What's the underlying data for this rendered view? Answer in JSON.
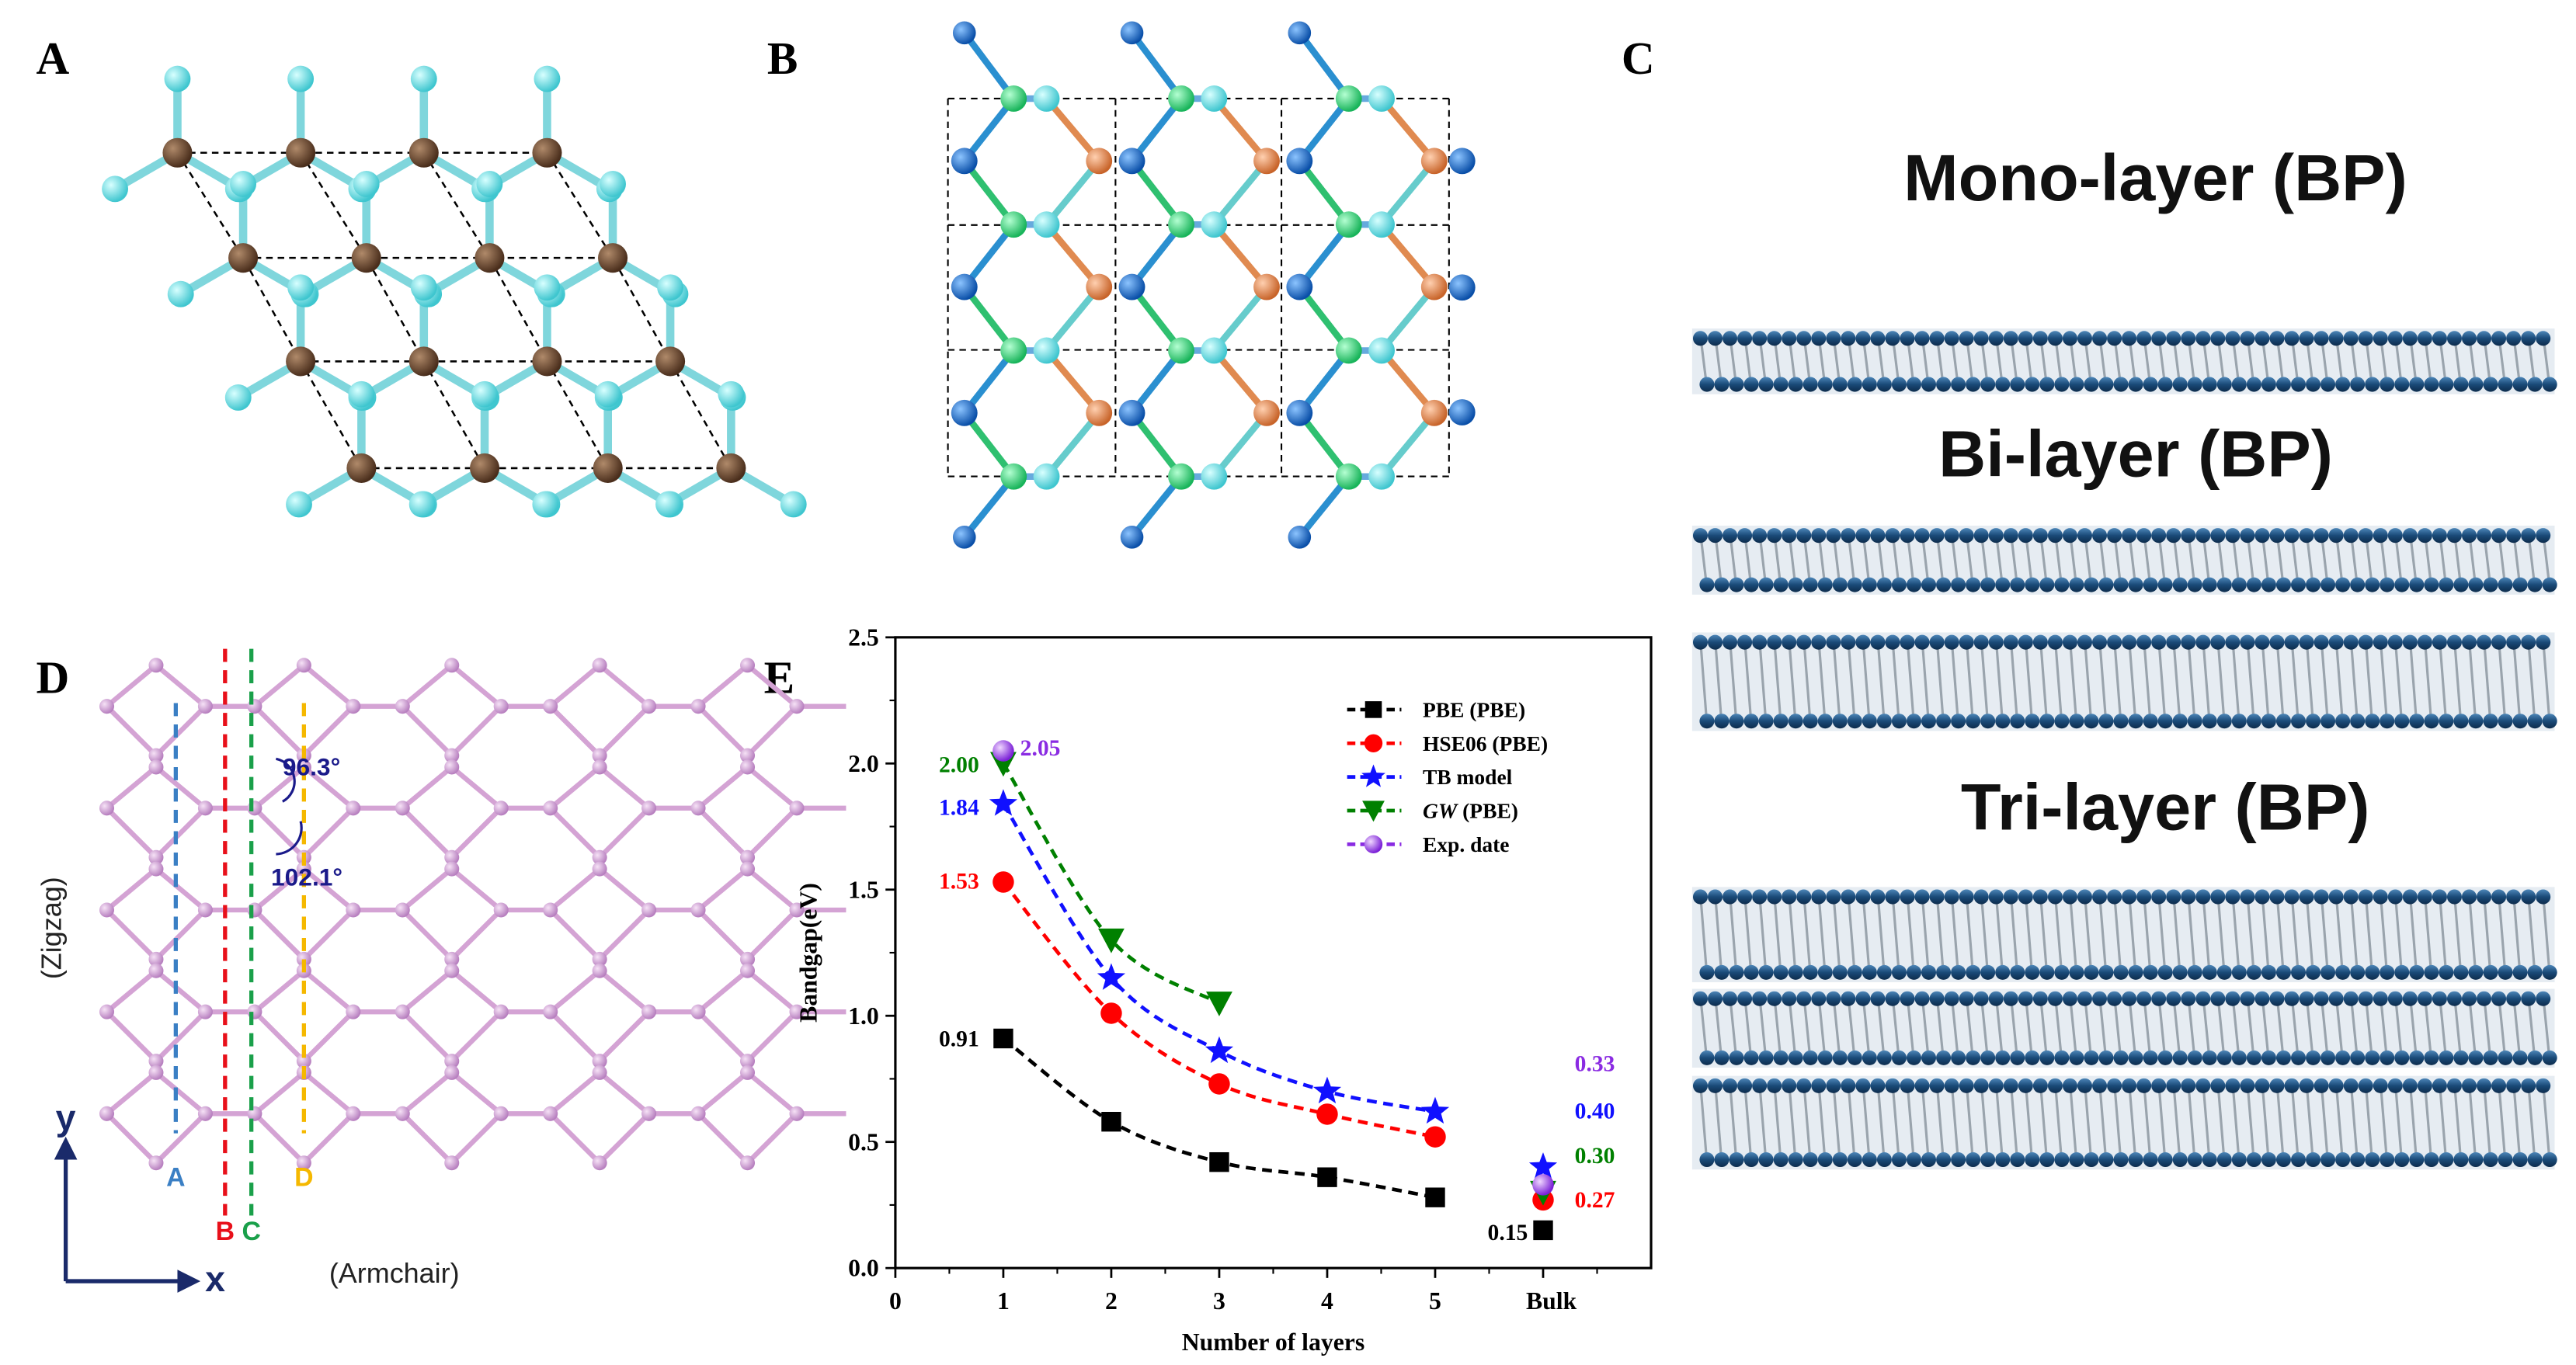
{
  "panel_labels": {
    "a": "A",
    "b": "B",
    "c": "C",
    "d": "D",
    "e": "E"
  },
  "panel_c": {
    "mono": "Mono-layer (BP)",
    "bi": "Bi-layer (BP)",
    "tri": "Tri-layer (BP)",
    "atom_color": "#1f5a8a"
  },
  "panel_d": {
    "angle1": "96.3°",
    "angle2": "102.1°",
    "zigzag": "(Zigzag)",
    "armchair": "(Armchair)",
    "axis_y": "y",
    "axis_x": "x",
    "cuts": [
      {
        "label": "A",
        "color": "#3a7fc4"
      },
      {
        "label": "B",
        "color": "#e8101a"
      },
      {
        "label": "C",
        "color": "#1aa04a"
      },
      {
        "label": "D",
        "color": "#f5b800"
      }
    ],
    "atom_color": "#d9a6d9"
  },
  "chart_data": {
    "type": "line",
    "xlabel": "Number of layers",
    "ylabel": "Bandgap(eV)",
    "xlim": [
      0,
      7
    ],
    "ylim": [
      0,
      2.5
    ],
    "x_ticks": [
      "0",
      "1",
      "2",
      "3",
      "4",
      "5",
      "Bulk"
    ],
    "x_tick_values": [
      0,
      1,
      2,
      3,
      4,
      5,
      6
    ],
    "y_ticks": [
      "0.0",
      "0.5",
      "1.0",
      "1.5",
      "2.0",
      "2.5"
    ],
    "legend_position": "top-right",
    "grid": false,
    "series": [
      {
        "name": "PBE (PBE)",
        "color": "#000000",
        "marker": "square",
        "x": [
          1,
          2,
          3,
          4,
          5,
          6
        ],
        "y": [
          0.91,
          0.58,
          0.42,
          0.36,
          0.28,
          0.15
        ]
      },
      {
        "name": "HSE06 (PBE)",
        "color": "#ff0000",
        "marker": "circle",
        "x": [
          1,
          2,
          3,
          4,
          5,
          6
        ],
        "y": [
          1.53,
          1.01,
          0.73,
          0.61,
          0.52,
          0.27
        ]
      },
      {
        "name": "TB model",
        "color": "#1010ff",
        "marker": "star",
        "x": [
          1,
          2,
          3,
          4,
          5,
          6
        ],
        "y": [
          1.84,
          1.15,
          0.86,
          0.7,
          0.62,
          0.4
        ]
      },
      {
        "name_italic": "GW",
        "name": " (PBE)",
        "color": "#008000",
        "marker": "triangle-down",
        "x": [
          1,
          2,
          3,
          6
        ],
        "y": [
          2.0,
          1.3,
          1.05,
          0.3
        ]
      },
      {
        "name": "Exp. date",
        "color": "#8a2be2",
        "marker": "sphere",
        "x": [
          1,
          6
        ],
        "y": [
          2.05,
          0.33
        ]
      }
    ],
    "annotations": [
      {
        "text": "0.91",
        "color": "#000000"
      },
      {
        "text": "1.53",
        "color": "#ff0000"
      },
      {
        "text": "1.84",
        "color": "#1010ff"
      },
      {
        "text": "2.00",
        "color": "#008000"
      },
      {
        "text": "2.05",
        "color": "#8a2be2"
      },
      {
        "text": "0.33",
        "color": "#8a2be2"
      },
      {
        "text": "0.40",
        "color": "#1010ff"
      },
      {
        "text": "0.30",
        "color": "#008000"
      },
      {
        "text": "0.27",
        "color": "#ff0000"
      },
      {
        "text": "0.15",
        "color": "#000000"
      }
    ]
  }
}
